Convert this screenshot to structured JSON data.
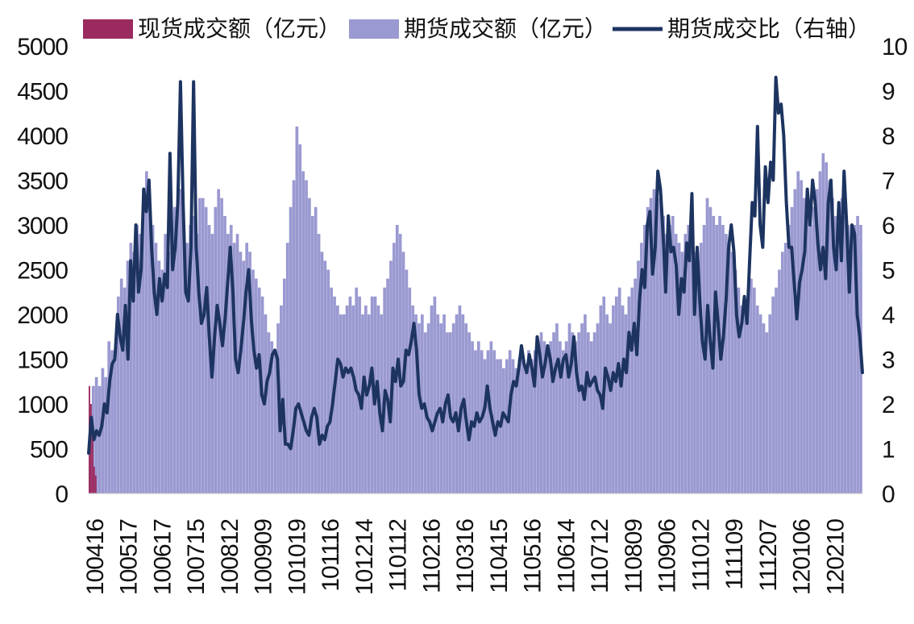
{
  "chart_data": {
    "type": "bar",
    "legend_placement": "top",
    "x_tick_labels": [
      "100416",
      "100517",
      "100617",
      "100715",
      "100812",
      "100909",
      "101019",
      "101116",
      "101214",
      "110112",
      "110216",
      "110316",
      "110415",
      "110516",
      "110614",
      "110712",
      "110809",
      "110906",
      "111012",
      "111109",
      "111207",
      "120106",
      "120210"
    ],
    "y_left": {
      "min": 0,
      "max": 5000,
      "step": 500,
      "ticks": [
        "0",
        "500",
        "1000",
        "1500",
        "2000",
        "2500",
        "3000",
        "3500",
        "4000",
        "4500",
        "5000"
      ]
    },
    "y_right": {
      "min": 0,
      "max": 10,
      "step": 1,
      "ticks": [
        "0",
        "1",
        "2",
        "3",
        "4",
        "5",
        "6",
        "7",
        "8",
        "9",
        "10"
      ]
    },
    "grid": false,
    "colors": {
      "spot": "#9b2a5e",
      "futures": "#9a99d1",
      "ratio": "#1d3461"
    },
    "series": [
      {
        "name": "现货成交额（亿元）",
        "kind": "bar",
        "axis": "left",
        "values": [
          1200,
          1000,
          700,
          300,
          200,
          0,
          0,
          0,
          0,
          0,
          0,
          0,
          0,
          0,
          0,
          0,
          0,
          0,
          0,
          0,
          0,
          0,
          0,
          0,
          0,
          0,
          0,
          0,
          0,
          0,
          0,
          0,
          0,
          0,
          0,
          0,
          0,
          0,
          0,
          0,
          0,
          0,
          0,
          0,
          0,
          0,
          0,
          0,
          0,
          0,
          0,
          0,
          0,
          0,
          0,
          0,
          0,
          0,
          0,
          0,
          0,
          0,
          0,
          0,
          0,
          0,
          0,
          0,
          0,
          0,
          0,
          0,
          0,
          0,
          0,
          0,
          0,
          0,
          0,
          0,
          0,
          0,
          0,
          0,
          0,
          0,
          0,
          0,
          0,
          0,
          0,
          0,
          0,
          0,
          0,
          0,
          0,
          0,
          0,
          0,
          0,
          0,
          0,
          0,
          0,
          0,
          0,
          0,
          0,
          0,
          0,
          0,
          0,
          0,
          0,
          0,
          0,
          0,
          0,
          0,
          0,
          0,
          0,
          0,
          0,
          0,
          0,
          0,
          0,
          0,
          0,
          0,
          0,
          0,
          0,
          0,
          0,
          0,
          0,
          0,
          0,
          0,
          0,
          0,
          0,
          0,
          0,
          0,
          0,
          0,
          0,
          0,
          0,
          0,
          0,
          0,
          0,
          0,
          0,
          0,
          0,
          0,
          0,
          0,
          0,
          0,
          0,
          0,
          0,
          0,
          0,
          0,
          0,
          0,
          0,
          0,
          0,
          0,
          0,
          0,
          0,
          0,
          0,
          0,
          0,
          0,
          0,
          0,
          0,
          0,
          0,
          0,
          0,
          0,
          0,
          0,
          0,
          0,
          0,
          0,
          0,
          0,
          0,
          0,
          0,
          0,
          0,
          0,
          0,
          0,
          0,
          0,
          0,
          0,
          0,
          0,
          0,
          0,
          0,
          0,
          0,
          0,
          0,
          0,
          0,
          0,
          0,
          0,
          0,
          0,
          0,
          0,
          0,
          0,
          0,
          0,
          0,
          0,
          0,
          0,
          0,
          0,
          0,
          0,
          0,
          0,
          0,
          0,
          0,
          0,
          0,
          0,
          0,
          0,
          0,
          0,
          0,
          0,
          0,
          0,
          0,
          0,
          0,
          0,
          0,
          0,
          0,
          0,
          0,
          0,
          0,
          0,
          0,
          0,
          0,
          0,
          0,
          0,
          0,
          0,
          0,
          0,
          0,
          0,
          0,
          0,
          0,
          0,
          0,
          0,
          0,
          0,
          0,
          0,
          0,
          0,
          0,
          0,
          0,
          0,
          0,
          0,
          0,
          0,
          0,
          0,
          0,
          0,
          0,
          0,
          0,
          0,
          0,
          0,
          0,
          0,
          0,
          0,
          0,
          0,
          0,
          0,
          0,
          0,
          0,
          0,
          0,
          0,
          0,
          0,
          0,
          0,
          0,
          0,
          0,
          0,
          0,
          0,
          0,
          0,
          0,
          0,
          0,
          0,
          0,
          0,
          0,
          0,
          0,
          0,
          0,
          0,
          0,
          0,
          0,
          0,
          0,
          0,
          0,
          0,
          0,
          0,
          0,
          0,
          0,
          0,
          0,
          0,
          0,
          0,
          0,
          0,
          0,
          0,
          0,
          0,
          0,
          0,
          0,
          0,
          0,
          0,
          0,
          0,
          0,
          0,
          0,
          0,
          0,
          0,
          0,
          0,
          0,
          0,
          0,
          0,
          0,
          0,
          0,
          0,
          0,
          0,
          0,
          0,
          0,
          0,
          0,
          0,
          0,
          0,
          0,
          0,
          0,
          0,
          0,
          0,
          0,
          0,
          0,
          0,
          0,
          0,
          0,
          0,
          0,
          0,
          0,
          0,
          0,
          0,
          0,
          0,
          0,
          0,
          0,
          0,
          0,
          0,
          0,
          0,
          0,
          0,
          0,
          0,
          0,
          0,
          0,
          0,
          0,
          0,
          0,
          0,
          0,
          0,
          0,
          0,
          0,
          0,
          0,
          0,
          0,
          0,
          0,
          0,
          0,
          0,
          0,
          0,
          0,
          0,
          0,
          0,
          0,
          0,
          0,
          0,
          0,
          0,
          0,
          0,
          0,
          0,
          0,
          0,
          0,
          0,
          0,
          0,
          0
        ]
      },
      {
        "name": "期货成交额（亿元）",
        "kind": "bar",
        "axis": "left",
        "values": [
          400,
          1200,
          1300,
          1200,
          1400,
          1300,
          1700,
          1600,
          1500,
          2200,
          2400,
          2300,
          2600,
          2800,
          2700,
          3000,
          2900,
          3400,
          3600,
          3200,
          3000,
          2800,
          2600,
          2500,
          2900,
          2700,
          3000,
          3200,
          3300,
          3400,
          2900,
          2800,
          3000,
          3100,
          2900,
          3300,
          3300,
          3200,
          3000,
          2900,
          3200,
          3400,
          3300,
          3100,
          2900,
          3000,
          2800,
          2900,
          2700,
          2600,
          2800,
          2700,
          2500,
          2400,
          2300,
          2200,
          2000,
          1800,
          1700,
          1600,
          1900,
          2100,
          2400,
          2800,
          3200,
          3500,
          4100,
          3900,
          3600,
          3500,
          3300,
          3100,
          3200,
          2900,
          2700,
          2600,
          2500,
          2300,
          2200,
          2100,
          2000,
          2000,
          2100,
          2200,
          2100,
          2300,
          2200,
          2000,
          2100,
          2000,
          2200,
          2200,
          2100,
          2000,
          2300,
          2400,
          2600,
          2800,
          3000,
          2900,
          2700,
          2500,
          2300,
          2100,
          2000,
          1900,
          2000,
          1800,
          1900,
          2100,
          2200,
          2000,
          1900,
          2000,
          1800,
          1800,
          1900,
          2000,
          2100,
          2000,
          1900,
          1800,
          1700,
          1600,
          1700,
          1600,
          1500,
          1600,
          1700,
          1600,
          1500,
          1500,
          1400,
          1500,
          1600,
          1500,
          1400,
          1500,
          1500,
          1400,
          1600,
          1500,
          1600,
          1700,
          1800,
          1700,
          1600,
          1700,
          1800,
          1900,
          1700,
          1600,
          1700,
          1900,
          1800,
          1700,
          1800,
          1900,
          2000,
          1800,
          1700,
          1800,
          1900,
          2100,
          2200,
          2000,
          1900,
          2100,
          2200,
          2300,
          2100,
          2000,
          2200,
          2300,
          2400,
          2600,
          2800,
          3000,
          3200,
          3300,
          3400,
          3500,
          3300,
          3100,
          2900,
          3000,
          3100,
          2900,
          2800,
          2700,
          2900,
          3000,
          2800,
          2700,
          2600,
          2800,
          3000,
          3300,
          3200,
          3100,
          3000,
          3100,
          3000,
          2900,
          2800,
          2700,
          2500,
          2300,
          2100,
          2000,
          2200,
          2400,
          2300,
          2100,
          2000,
          1900,
          1800,
          2000,
          2200,
          2300,
          2500,
          2700,
          2800,
          3000,
          3200,
          3400,
          3600,
          3500,
          3300,
          3100,
          3000,
          3200,
          3400,
          3600,
          3800,
          3700,
          3500,
          3300,
          3100,
          3200,
          3300,
          3100,
          3000,
          2900,
          3000,
          3100,
          3000
        ]
      },
      {
        "name": "期货成交比（右轴）",
        "kind": "line",
        "axis": "right",
        "values": [
          0.9,
          1.7,
          1.2,
          1.4,
          1.3,
          1.5,
          2.0,
          1.8,
          2.5,
          2.9,
          3.0,
          4.0,
          3.5,
          3.2,
          4.2,
          3.0,
          5.2,
          4.3,
          6.0,
          4.5,
          5.0,
          6.8,
          6.3,
          7.0,
          5.5,
          4.5,
          4.0,
          4.8,
          4.3,
          4.9,
          4.6,
          7.6,
          5.0,
          5.5,
          6.5,
          9.2,
          6.5,
          4.5,
          4.3,
          5.5,
          9.2,
          5.5,
          4.5,
          3.8,
          4.0,
          4.6,
          3.5,
          2.6,
          3.5,
          4.2,
          3.8,
          3.3,
          3.9,
          4.7,
          5.5,
          4.5,
          3.0,
          2.7,
          3.2,
          3.8,
          4.5,
          5.0,
          3.9,
          3.2,
          2.8,
          3.1,
          2.2,
          2.0,
          2.5,
          2.7,
          3.1,
          3.2,
          3.0,
          1.4,
          2.1,
          1.1,
          1.1,
          1.0,
          1.4,
          1.9,
          2.0,
          1.8,
          1.6,
          1.4,
          1.3,
          1.7,
          1.9,
          1.7,
          1.1,
          1.3,
          1.2,
          1.5,
          1.6,
          2.0,
          2.5,
          3.0,
          2.9,
          2.6,
          2.8,
          2.7,
          2.8,
          2.6,
          2.3,
          2.2,
          1.9,
          2.6,
          2.2,
          2.4,
          2.8,
          2.0,
          2.5,
          1.8,
          1.4,
          2.3,
          2.1,
          1.6,
          2.8,
          2.5,
          3.0,
          2.4,
          2.5,
          3.2,
          3.1,
          3.4,
          3.8,
          3.2,
          2.2,
          1.9,
          2.0,
          1.7,
          1.6,
          1.4,
          1.6,
          1.8,
          1.9,
          1.6,
          2.0,
          2.2,
          1.7,
          1.6,
          1.8,
          1.4,
          1.9,
          2.1,
          1.6,
          1.2,
          1.6,
          1.5,
          1.8,
          1.6,
          1.7,
          1.9,
          2.4,
          1.9,
          1.6,
          1.3,
          1.6,
          1.5,
          1.8,
          1.7,
          1.6,
          2.2,
          2.5,
          2.4,
          2.8,
          3.3,
          2.9,
          2.7,
          3.1,
          2.8,
          2.4,
          3.5,
          3.1,
          2.6,
          2.9,
          3.3,
          3.0,
          2.5,
          2.8,
          3.0,
          2.6,
          3.0,
          3.1,
          2.6,
          2.9,
          3.5,
          2.7,
          2.3,
          2.4,
          2.1,
          2.7,
          2.4,
          2.5,
          2.6,
          2.3,
          2.2,
          1.9,
          2.8,
          2.6,
          2.3,
          2.7,
          2.5,
          2.9,
          2.4,
          3.0,
          2.7,
          3.6,
          3.2,
          3.8,
          3.1,
          4.3,
          5.0,
          4.6,
          6.0,
          6.3,
          4.9,
          5.5,
          7.2,
          6.8,
          5.8,
          4.5,
          6.2,
          5.4,
          5.5,
          5.1,
          4.0,
          4.8,
          4.5,
          5.6,
          5.2,
          6.7,
          4.0,
          5.5,
          4.3,
          3.4,
          3.0,
          4.2,
          3.4,
          2.8,
          4.5,
          3.8,
          3.0,
          3.5,
          4.3,
          5.5,
          6.0,
          5.4,
          4.0,
          3.5,
          3.8,
          4.4,
          3.8,
          5.2,
          6.5,
          6.2,
          8.2,
          6.0,
          5.5,
          7.3,
          6.5,
          7.4,
          7.0,
          9.3,
          8.5,
          8.7,
          8.0,
          6.5,
          5.5,
          5.5,
          4.7,
          3.9,
          4.7,
          5.0,
          5.4,
          6.8,
          6.0,
          7.0,
          6.5,
          5.6,
          5.0,
          5.5,
          4.8,
          6.5,
          7.0,
          5.5,
          5.0,
          6.5,
          5.2,
          7.2,
          6.0,
          4.5,
          6.0,
          5.8,
          4.0,
          3.5,
          2.7
        ]
      }
    ]
  }
}
